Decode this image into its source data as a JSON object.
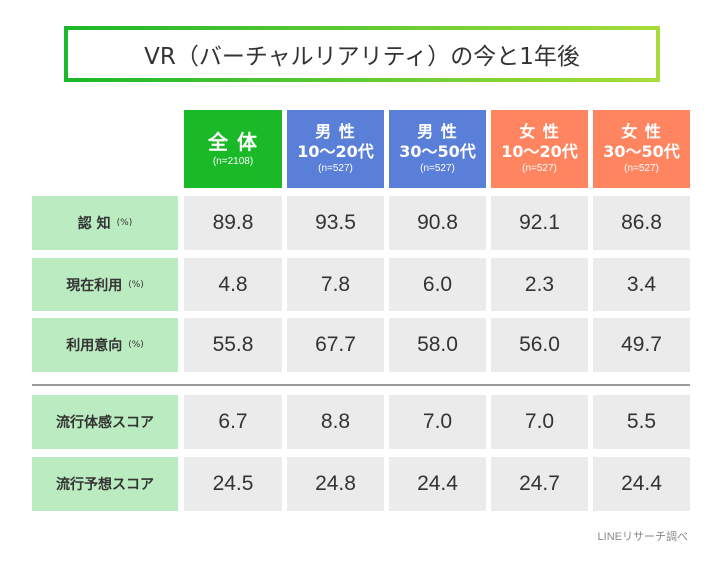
{
  "title": "VR（バーチャルリアリティ）の今と1年後",
  "colors": {
    "all": "#19b928",
    "male": "#5a7fd9",
    "female": "#ff8560",
    "label_bg": "#bbebc0",
    "cell_bg": "#ebebeb"
  },
  "columns": [
    {
      "line1": "全 体",
      "line2": "",
      "n": "(n=2108)"
    },
    {
      "line1": "男 性",
      "line2": "10〜20代",
      "n": "(n=527)"
    },
    {
      "line1": "男 性",
      "line2": "30〜50代",
      "n": "(n=527)"
    },
    {
      "line1": "女 性",
      "line2": "10〜20代",
      "n": "(n=527)"
    },
    {
      "line1": "女 性",
      "line2": "30〜50代",
      "n": "(n=527)"
    }
  ],
  "rows": [
    {
      "label": "認 知",
      "unit": "(%)",
      "values": [
        "89.8",
        "93.5",
        "90.8",
        "92.1",
        "86.8"
      ]
    },
    {
      "label": "現在利用",
      "unit": "(%)",
      "values": [
        "4.8",
        "7.8",
        "6.0",
        "2.3",
        "3.4"
      ]
    },
    {
      "label": "利用意向",
      "unit": "(%)",
      "values": [
        "55.8",
        "67.7",
        "58.0",
        "56.0",
        "49.7"
      ]
    },
    {
      "label": "流行体感スコア",
      "unit": "",
      "values": [
        "6.7",
        "8.8",
        "7.0",
        "7.0",
        "5.5"
      ]
    },
    {
      "label": "流行予想スコア",
      "unit": "",
      "values": [
        "24.5",
        "24.8",
        "24.4",
        "24.7",
        "24.4"
      ]
    }
  ],
  "footer": "LINEリサーチ調べ"
}
